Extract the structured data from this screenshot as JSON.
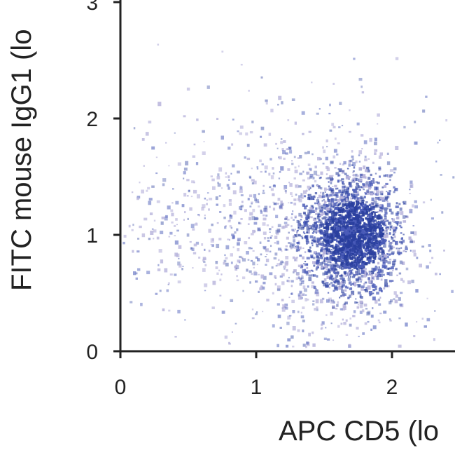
{
  "chart_data": {
    "type": "scatter",
    "plot_style": "flow cytometry density dot plot",
    "xlabel": "APC CD5 (lo",
    "ylabel": "FITC mouse IgG1 (lo",
    "xlim": [
      0,
      2.5
    ],
    "ylim": [
      0,
      3
    ],
    "x_ticks": [
      "0",
      "1",
      "2"
    ],
    "y_ticks": [
      "0",
      "1",
      "2",
      "3"
    ],
    "grid": false,
    "legend": "none",
    "colors": {
      "dense": "#2a3f9e",
      "mid": "#4a5bb8",
      "sparse": "#b8b4dc",
      "axis": "#222222"
    },
    "populations": [
      {
        "center": [
          1.72,
          1.0
        ],
        "spread": [
          0.17,
          0.24
        ],
        "count": 1700,
        "density": "high"
      },
      {
        "center": [
          1.55,
          0.95
        ],
        "spread": [
          0.32,
          0.42
        ],
        "count": 900,
        "density": "medium"
      },
      {
        "center": [
          0.75,
          1.05
        ],
        "spread": [
          0.45,
          0.35
        ],
        "count": 420,
        "density": "low"
      },
      {
        "center": [
          1.3,
          1.9
        ],
        "spread": [
          0.55,
          0.35
        ],
        "count": 90,
        "density": "low"
      }
    ]
  }
}
